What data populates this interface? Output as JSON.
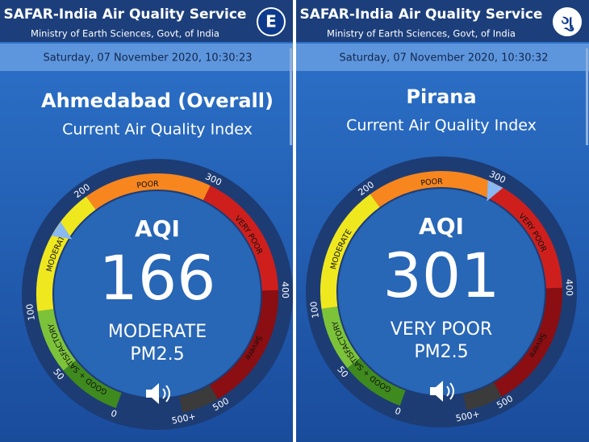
{
  "panels": [
    {
      "header_title": "SAFAR-India Air Quality Service",
      "header_subtitle": "Ministry of Earth Sciences, Govt, of India",
      "badge": "E",
      "datetime": "Saturday, 07 November 2020, 10:30:23",
      "location": "Ahmedabad (Overall)",
      "subtitle": "Current Air Quality Index",
      "gauge": {
        "label": "AQI",
        "value": "166",
        "category": "MODERATE",
        "pollutant": "PM2.5",
        "scale_labels": [
          "0",
          "50",
          "100",
          "200",
          "300",
          "400",
          "500",
          "500+"
        ],
        "bands": [
          "GOOD + SATISFACTORY",
          "MODERATE",
          "POOR",
          "VERY POOR",
          "Severe"
        ]
      }
    },
    {
      "header_title": "SAFAR-India Air Quality Service",
      "header_subtitle": "Ministry of Earth Sciences, Govt, of India",
      "badge": "ગુ",
      "datetime": "Saturday, 07 November 2020, 10:30:32",
      "location": "Pirana",
      "subtitle": "Current Air Quality Index",
      "gauge": {
        "label": "AQI",
        "value": "301",
        "category": "VERY POOR",
        "pollutant": "PM2.5",
        "scale_labels": [
          "0",
          "50",
          "100",
          "200",
          "300",
          "400",
          "500",
          "500+"
        ],
        "bands": [
          "GOOD + SATISFACTORY",
          "MODERATE",
          "POOR",
          "VERY POOR",
          "Severe"
        ]
      }
    }
  ]
}
